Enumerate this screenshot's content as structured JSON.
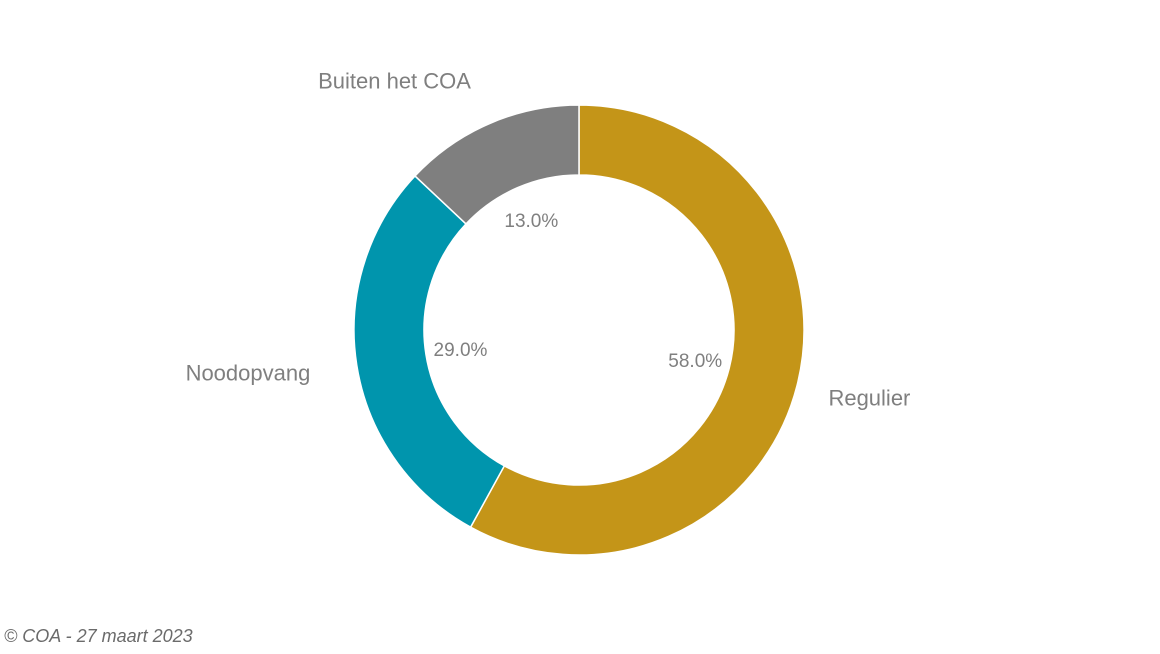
{
  "chart_data": {
    "type": "pie",
    "variant": "donut",
    "labels": [
      "Regulier",
      "Noodopvang",
      "Buiten het COA"
    ],
    "values": [
      58.0,
      29.0,
      13.0
    ],
    "percent_labels": [
      "58.0%",
      "29.0%",
      "13.0%"
    ],
    "colors": [
      "#C49518",
      "#0095AD",
      "#7F7F7F"
    ],
    "label_color": "#7F7F7F",
    "start": "12 o'clock",
    "direction": "clockwise"
  },
  "footer": {
    "source": "© COA - 27 maart 2023"
  }
}
